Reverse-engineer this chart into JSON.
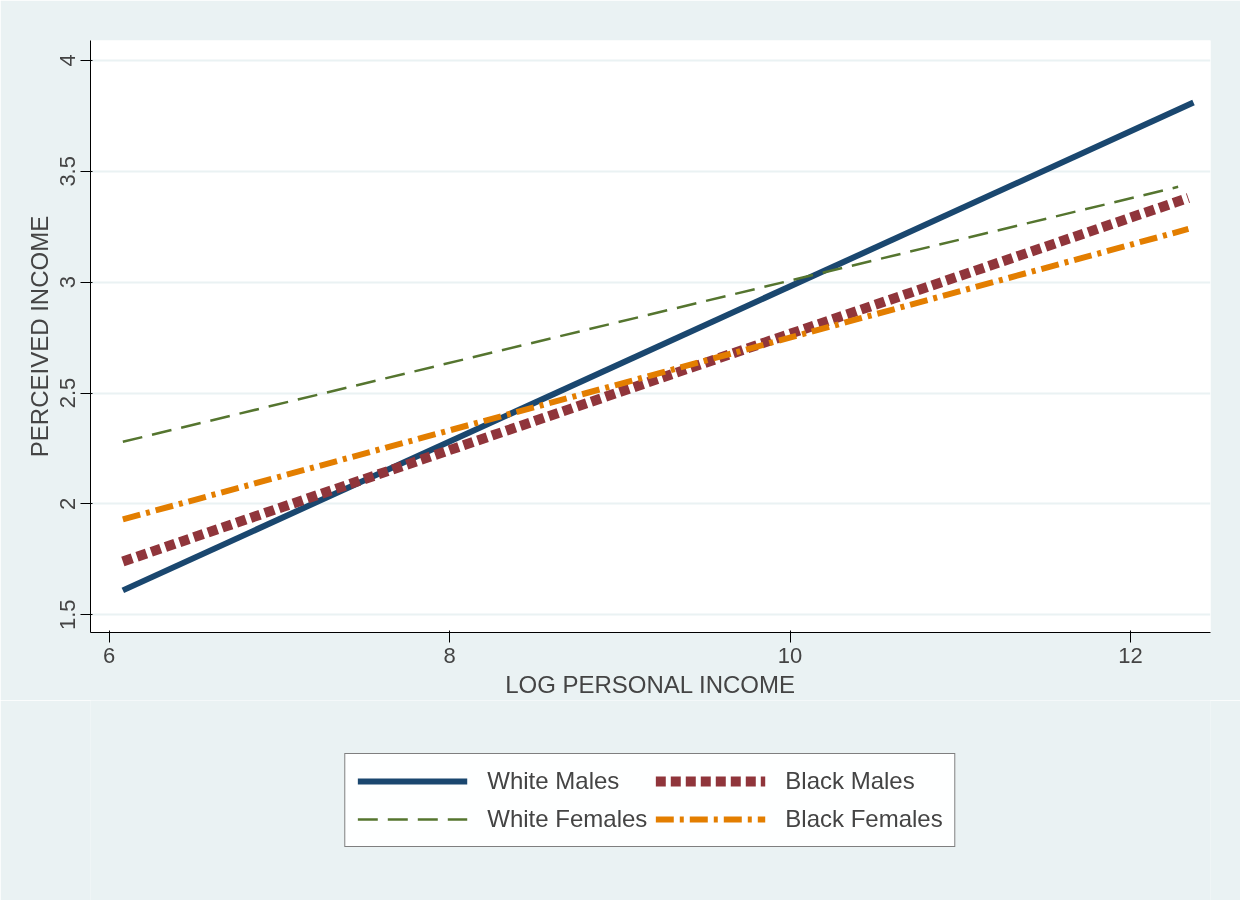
{
  "chart_data": {
    "type": "line",
    "xlabel": "LOG PERSONAL INCOME",
    "ylabel": "PERCEIVED INCOME",
    "xlim": [
      5.89,
      12.47
    ],
    "ylim": [
      1.42,
      4.09
    ],
    "xticks": [
      6,
      8,
      10,
      12
    ],
    "yticks": [
      1.5,
      2,
      2.5,
      3,
      3.5,
      4
    ],
    "grid": "y",
    "legend": "bottom",
    "marker": "none",
    "series": [
      {
        "name": "White Males",
        "color": "#1a476f",
        "line_style": "solid",
        "x": [
          6.08,
          12.37
        ],
        "values": [
          1.61,
          3.81
        ]
      },
      {
        "name": "Black Males",
        "color": "#90353b",
        "line_style": "dotted",
        "x": [
          6.08,
          12.34
        ],
        "values": [
          1.74,
          3.38
        ]
      },
      {
        "name": "White Females",
        "color": "#55752f",
        "line_style": "dashed",
        "x": [
          6.08,
          12.28
        ],
        "values": [
          2.28,
          3.43
        ]
      },
      {
        "name": "Black Females",
        "color": "#e37e00",
        "line_style": "dashdot",
        "x": [
          6.08,
          12.34
        ],
        "values": [
          1.93,
          3.24
        ]
      }
    ]
  }
}
